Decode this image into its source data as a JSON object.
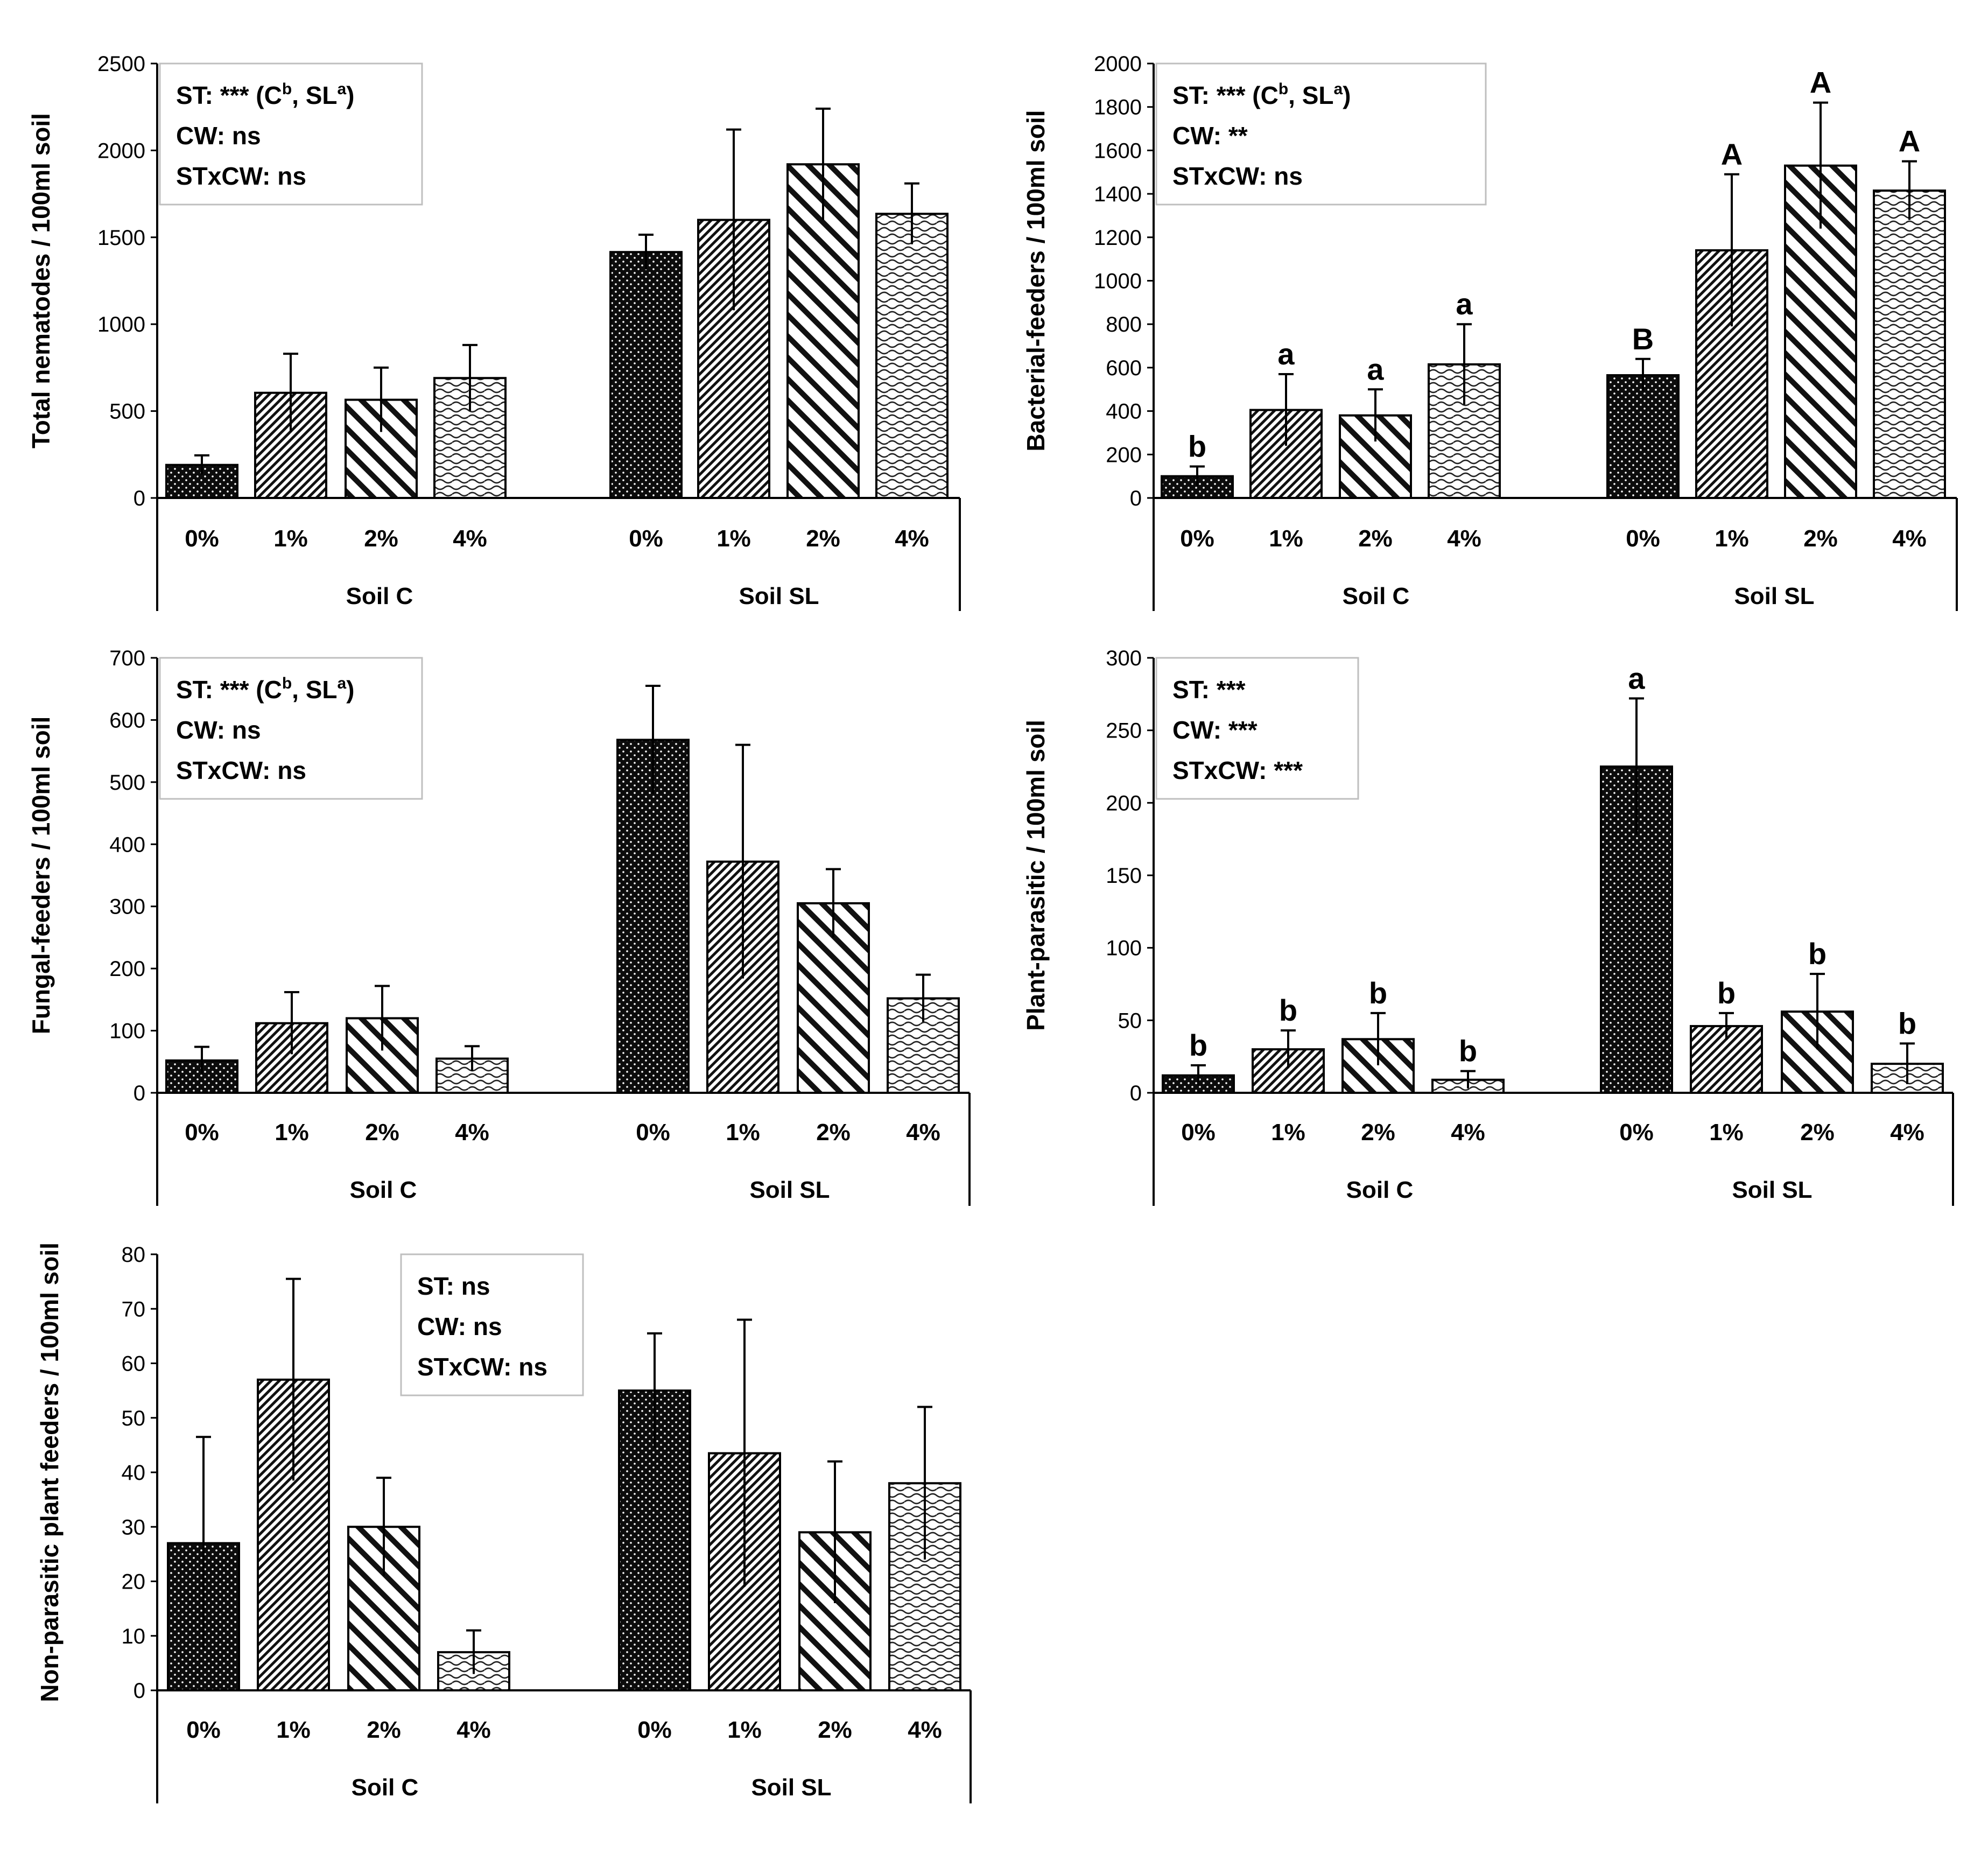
{
  "chart_data": [
    {
      "type": "bar",
      "ylabel": "Total nematodes / 100ml soil",
      "ylim": [
        0,
        2500
      ],
      "yticks": [
        0,
        500,
        1000,
        1500,
        2000,
        2500
      ],
      "groups": [
        "Soil C",
        "Soil SL"
      ],
      "categories": [
        "0%",
        "1%",
        "2%",
        "4%"
      ],
      "series": [
        {
          "group": "Soil C",
          "values": [
            190,
            605,
            565,
            690
          ],
          "errors": [
            55,
            225,
            185,
            190
          ],
          "letters": [
            "",
            "",
            "",
            ""
          ]
        },
        {
          "group": "Soil SL",
          "values": [
            1415,
            1600,
            1920,
            1635
          ],
          "errors": [
            100,
            520,
            320,
            175
          ],
          "letters": [
            "",
            "",
            "",
            ""
          ]
        }
      ],
      "stats": [
        "ST: *** (C",
        "b",
        ", SL",
        "a",
        ")",
        "CW: ns",
        "STxCW: ns"
      ],
      "stats_box": "top-left"
    },
    {
      "type": "bar",
      "ylabel": "Bacterial-feeders / 100ml soil",
      "ylim": [
        0,
        2000
      ],
      "yticks": [
        0,
        200,
        400,
        600,
        800,
        1000,
        1200,
        1400,
        1600,
        1800,
        2000
      ],
      "groups": [
        "Soil C",
        "Soil SL"
      ],
      "categories": [
        "0%",
        "1%",
        "2%",
        "4%"
      ],
      "series": [
        {
          "group": "Soil C",
          "values": [
            100,
            405,
            380,
            615
          ],
          "errors": [
            45,
            165,
            120,
            185
          ],
          "letters": [
            "b",
            "a",
            "a",
            "a"
          ]
        },
        {
          "group": "Soil SL",
          "values": [
            565,
            1140,
            1530,
            1415
          ],
          "errors": [
            75,
            350,
            290,
            135
          ],
          "letters": [
            "B",
            "A",
            "A",
            "A"
          ]
        }
      ],
      "stats": [
        "ST: *** (C",
        "b",
        ", SL",
        "a",
        ")",
        "CW: **",
        "STxCW: ns"
      ],
      "stats_box": "top-left"
    },
    {
      "type": "bar",
      "ylabel": "Fungal-feeders / 100ml soil",
      "ylim": [
        0,
        700
      ],
      "yticks": [
        0,
        100,
        200,
        300,
        400,
        500,
        600,
        700
      ],
      "groups": [
        "Soil C",
        "Soil SL"
      ],
      "categories": [
        "0%",
        "1%",
        "2%",
        "4%"
      ],
      "series": [
        {
          "group": "Soil C",
          "values": [
            52,
            112,
            120,
            55
          ],
          "errors": [
            22,
            50,
            52,
            20
          ],
          "letters": [
            "",
            "",
            "",
            ""
          ]
        },
        {
          "group": "Soil SL",
          "values": [
            568,
            372,
            305,
            152
          ],
          "errors": [
            87,
            188,
            55,
            38
          ],
          "letters": [
            "",
            "",
            "",
            ""
          ]
        }
      ],
      "stats": [
        "ST: *** (C",
        "b",
        ", SL",
        "a",
        ")",
        "CW: ns",
        "STxCW: ns"
      ],
      "stats_box": "top-left"
    },
    {
      "type": "bar",
      "ylabel": "Plant-parasitic / 100ml soil",
      "ylim": [
        0,
        300
      ],
      "yticks": [
        0,
        50,
        100,
        150,
        200,
        250,
        300
      ],
      "groups": [
        "Soil C",
        "Soil SL"
      ],
      "categories": [
        "0%",
        "1%",
        "2%",
        "4%"
      ],
      "series": [
        {
          "group": "Soil C",
          "values": [
            12,
            30,
            37,
            9
          ],
          "errors": [
            7,
            13,
            18,
            6
          ],
          "letters": [
            "b",
            "b",
            "b",
            "b"
          ]
        },
        {
          "group": "Soil SL",
          "values": [
            225,
            46,
            56,
            20
          ],
          "errors": [
            47,
            9,
            26,
            14
          ],
          "letters": [
            "a",
            "b",
            "b",
            "b"
          ]
        }
      ],
      "stats": [
        "ST: ***",
        "CW: ***",
        "STxCW: ***"
      ],
      "stats_box": "top-left"
    },
    {
      "type": "bar",
      "ylabel": "Non-parasitic plant feeders / 100ml soil",
      "ylim": [
        0,
        80
      ],
      "yticks": [
        0,
        10,
        20,
        30,
        40,
        50,
        60,
        70,
        80
      ],
      "groups": [
        "Soil C",
        "Soil SL"
      ],
      "categories": [
        "0%",
        "1%",
        "2%",
        "4%"
      ],
      "series": [
        {
          "group": "Soil C",
          "values": [
            27,
            57,
            30,
            7
          ],
          "errors": [
            19.5,
            18.5,
            9,
            4
          ],
          "letters": [
            "",
            "",
            "",
            ""
          ]
        },
        {
          "group": "Soil SL",
          "values": [
            55,
            43.5,
            29,
            38
          ],
          "errors": [
            10.5,
            24.5,
            13,
            14
          ],
          "letters": [
            "",
            "",
            "",
            ""
          ]
        }
      ],
      "stats": [
        "ST: ns",
        "CW: ns",
        "STxCW: ns"
      ],
      "stats_box": "top-center"
    }
  ]
}
